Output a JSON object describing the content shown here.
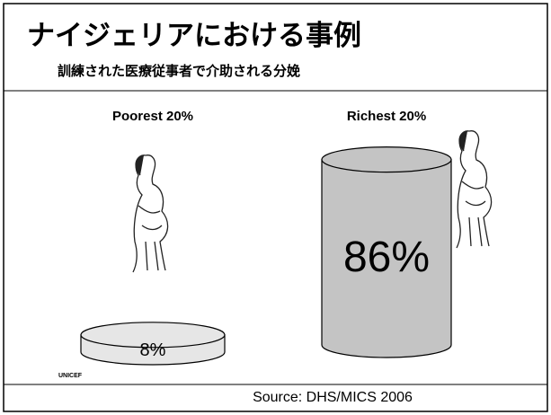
{
  "chart_data": {
    "type": "cylinder",
    "title": "ナイジェリアにおける事例",
    "subtitle": "訓練された医療従事者で介助される分娩",
    "categories": [
      "Poorest 20%",
      "Richest 20%"
    ],
    "values": [
      8,
      86
    ],
    "value_labels": [
      "8%",
      "86%"
    ],
    "colors": [
      "#e6e6e6",
      "#c4c4c4"
    ],
    "source": "Source: DHS/MICS 2006",
    "credit": "UNICEF"
  }
}
